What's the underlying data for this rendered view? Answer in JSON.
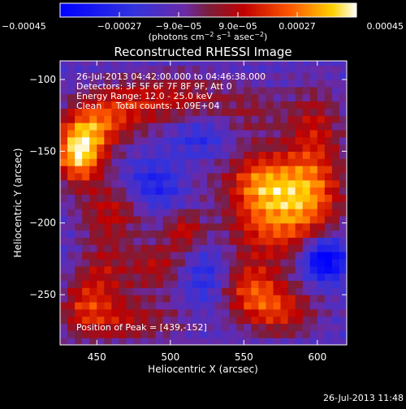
{
  "chart_data": {
    "type": "heatmap",
    "title": "Reconstructed RHESSI Image",
    "xlabel": "Heliocentric X (arcsec)",
    "ylabel": "Heliocentric Y (arcsec)",
    "xlim": [
      425,
      620
    ],
    "ylim": [
      -285,
      -87
    ],
    "x_ticks": [
      {
        "value": 450,
        "label": "450"
      },
      {
        "value": 500,
        "label": "500"
      },
      {
        "value": 550,
        "label": "550"
      },
      {
        "value": 600,
        "label": "600"
      }
    ],
    "y_ticks": [
      {
        "value": -100,
        "label": "−100"
      },
      {
        "value": -150,
        "label": "−150"
      },
      {
        "value": -200,
        "label": "−200"
      },
      {
        "value": -250,
        "label": "−250"
      }
    ],
    "colorbar": {
      "range": [
        -0.00045,
        0.00045
      ],
      "ticks": [
        {
          "value": -0.00045,
          "label": "−0.00045"
        },
        {
          "value": -0.00027,
          "label": "−0.00027"
        },
        {
          "value": -9e-05,
          "label": "−9.0e−05"
        },
        {
          "value": 9e-05,
          "label": "9.0e−05"
        },
        {
          "value": 0.00027,
          "label": "0.00027"
        },
        {
          "value": 0.00045,
          "label": "0.00045"
        }
      ],
      "unit_parts": [
        "(photons cm",
        "−2",
        " s",
        "−1",
        " asec",
        "−2",
        ")"
      ],
      "colormap": "blue-purple-red-orange-yellow-white"
    },
    "annotations": [
      "26-Jul-2013 04:42:00.000 to 04:46:38.000",
      "Detectors: 3F 5F 6F 7F 8F 9F, Att 0",
      "Energy Range: 12.0 - 25.0 keV",
      "Clean     Total counts: 1.09E+04"
    ],
    "peak_label": "Position of Peak = [439,-152]",
    "peak": [
      439,
      -152
    ],
    "sources": [
      {
        "x": 438,
        "y": -152,
        "sx": 12,
        "sy": 14,
        "amp": 0.00052
      },
      {
        "x": 448,
        "y": -132,
        "sx": 16,
        "sy": 12,
        "amp": 0.00026
      },
      {
        "x": 470,
        "y": -118,
        "sx": 22,
        "sy": 14,
        "amp": 0.00022
      },
      {
        "x": 510,
        "y": -112,
        "sx": 22,
        "sy": 12,
        "amp": 0.00018
      },
      {
        "x": 555,
        "y": -122,
        "sx": 16,
        "sy": 14,
        "amp": 0.00014
      },
      {
        "x": 598,
        "y": -135,
        "sx": 14,
        "sy": 22,
        "amp": 0.00024
      },
      {
        "x": 592,
        "y": -178,
        "sx": 18,
        "sy": 18,
        "amp": 0.00038
      },
      {
        "x": 560,
        "y": -172,
        "sx": 16,
        "sy": 16,
        "amp": 0.00036
      },
      {
        "x": 570,
        "y": -205,
        "sx": 24,
        "sy": 16,
        "amp": 0.00028
      },
      {
        "x": 555,
        "y": -245,
        "sx": 16,
        "sy": 14,
        "amp": 0.0003
      },
      {
        "x": 575,
        "y": -262,
        "sx": 18,
        "sy": 12,
        "amp": 0.00026
      },
      {
        "x": 462,
        "y": -190,
        "sx": 18,
        "sy": 14,
        "amp": 0.00022
      },
      {
        "x": 510,
        "y": -205,
        "sx": 10,
        "sy": 10,
        "amp": 0.00024
      },
      {
        "x": 490,
        "y": -230,
        "sx": 14,
        "sy": 12,
        "amp": 0.00022
      },
      {
        "x": 455,
        "y": -235,
        "sx": 12,
        "sy": 22,
        "amp": 0.0002
      },
      {
        "x": 440,
        "y": -255,
        "sx": 10,
        "sy": 14,
        "amp": 0.00018
      },
      {
        "x": 470,
        "y": -268,
        "sx": 30,
        "sy": 12,
        "amp": 0.0002
      },
      {
        "x": 520,
        "y": -170,
        "sx": 12,
        "sy": 10,
        "amp": 6e-05
      },
      {
        "x": 605,
        "y": -225,
        "sx": 10,
        "sy": 10,
        "amp": -0.0004
      },
      {
        "x": 488,
        "y": -175,
        "sx": 14,
        "sy": 12,
        "amp": -0.0002
      },
      {
        "x": 525,
        "y": -238,
        "sx": 12,
        "sy": 16,
        "amp": -0.00016
      },
      {
        "x": 520,
        "y": -140,
        "sx": 14,
        "sy": 10,
        "amp": -0.00012
      }
    ],
    "background": -0.00014
  },
  "footer": {
    "timestamp": "26-Jul-2013 11:48"
  }
}
